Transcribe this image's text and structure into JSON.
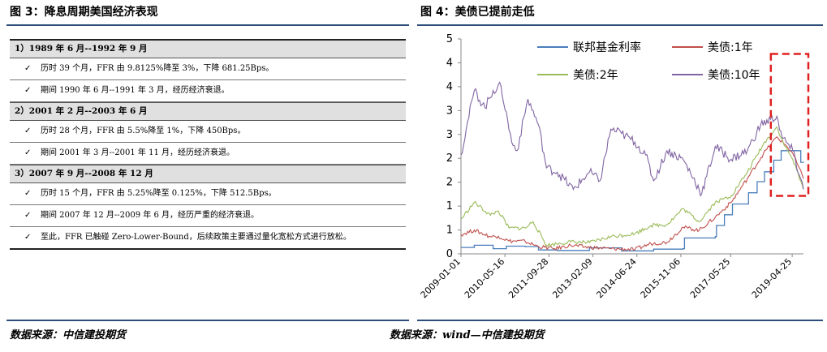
{
  "left_panel": {
    "title": "图 3：降息周期美国经济表现",
    "source": "数据来源：中信建投期货",
    "periods": [
      {
        "heading": "1）1989 年 6 月--1992 年 9 月",
        "items": [
          "历时 39 个月，FFR 由 9.8125%降至 3%，下降 681.25Bps。",
          "期间 1990 年 6 月--1991 年 3 月，经历经济衰退。"
        ]
      },
      {
        "heading": "2）2001 年 2 月--2003 年 6 月",
        "items": [
          "历时 28 个月，FFR 由 5.5%降至 1%，下降 450Bps。",
          "期间 2001 年 3 月--2001 年 11 月，经历经济衰退。"
        ]
      },
      {
        "heading": "3）2007 年 9 月--2008 年 12 月",
        "items": [
          "历时 15 个月，FFR 由 5.25%降至 0.125%，下降 512.5Bps。",
          "期间 2007 年 12 月--2009 年 6 月，经历严重的经济衰退。",
          "至此，FFR 已触碰 Zero-Lower-Bound，后续政策主要通过量化宽松方式进行放松。"
        ]
      }
    ],
    "check_glyph": "✓"
  },
  "right_panel": {
    "title": "图 4：美债已提前走低",
    "source": "数据来源：wind—中信建投期货"
  },
  "colors": {
    "rule": "#2e4e7a",
    "ffr": "#4a7ebb",
    "t1y": "#c0504d",
    "t2y": "#9bbb59",
    "t10y": "#8064a2",
    "highlight_box": "#e02020"
  },
  "chart_data": {
    "type": "line",
    "title": "",
    "xlabel": "",
    "ylabel": "",
    "ylim": [
      0,
      5
    ],
    "y_tick_labels": [
      "0",
      "1",
      "1",
      "2",
      "2",
      "3",
      "3",
      "4",
      "4",
      "5"
    ],
    "x_tick_labels": [
      "2009-01-01",
      "2010-05-16",
      "2011-09-28",
      "2013-02-09",
      "2014-06-24",
      "2015-11-06",
      "2017-05-25",
      "2019-04-25"
    ],
    "x_range": [
      "2009-01-01",
      "2019-08-31"
    ],
    "legend_position": "top-right",
    "highlight": {
      "from": "2018-10-01",
      "to": "2019-08-31",
      "note": "dashed red box around the recent decline"
    },
    "series": [
      {
        "name": "联邦基金利率",
        "color_key": "ffr",
        "points": [
          [
            "2009-01-01",
            0.15
          ],
          [
            "2009-06-01",
            0.2
          ],
          [
            "2010-01-01",
            0.12
          ],
          [
            "2010-06-01",
            0.18
          ],
          [
            "2011-01-01",
            0.17
          ],
          [
            "2011-06-01",
            0.09
          ],
          [
            "2012-01-01",
            0.08
          ],
          [
            "2013-01-01",
            0.14
          ],
          [
            "2014-01-01",
            0.07
          ],
          [
            "2015-01-01",
            0.11
          ],
          [
            "2015-11-30",
            0.12
          ],
          [
            "2015-12-17",
            0.37
          ],
          [
            "2016-12-01",
            0.4
          ],
          [
            "2016-12-15",
            0.66
          ],
          [
            "2017-03-15",
            0.91
          ],
          [
            "2017-06-15",
            1.16
          ],
          [
            "2017-12-14",
            1.42
          ],
          [
            "2018-03-22",
            1.68
          ],
          [
            "2018-06-14",
            1.91
          ],
          [
            "2018-09-27",
            2.18
          ],
          [
            "2018-12-20",
            2.4
          ],
          [
            "2019-07-31",
            2.4
          ],
          [
            "2019-08-01",
            2.13
          ],
          [
            "2019-08-31",
            2.12
          ]
        ]
      },
      {
        "name": "美债:1年",
        "color_key": "t1y",
        "points": [
          [
            "2009-01-01",
            0.45
          ],
          [
            "2009-06-01",
            0.55
          ],
          [
            "2009-12-01",
            0.4
          ],
          [
            "2010-03-01",
            0.41
          ],
          [
            "2010-07-01",
            0.3
          ],
          [
            "2011-01-01",
            0.29
          ],
          [
            "2011-06-01",
            0.17
          ],
          [
            "2011-12-01",
            0.12
          ],
          [
            "2012-06-01",
            0.2
          ],
          [
            "2013-01-01",
            0.15
          ],
          [
            "2013-09-01",
            0.12
          ],
          [
            "2014-06-01",
            0.1
          ],
          [
            "2014-12-01",
            0.24
          ],
          [
            "2015-06-01",
            0.27
          ],
          [
            "2015-12-01",
            0.62
          ],
          [
            "2016-06-01",
            0.55
          ],
          [
            "2016-12-01",
            0.85
          ],
          [
            "2017-06-01",
            1.2
          ],
          [
            "2017-12-01",
            1.75
          ],
          [
            "2018-06-01",
            2.33
          ],
          [
            "2018-11-01",
            2.72
          ],
          [
            "2019-02-01",
            2.55
          ],
          [
            "2019-05-01",
            2.34
          ],
          [
            "2019-08-31",
            1.75
          ]
        ]
      },
      {
        "name": "美债:2年",
        "color_key": "t2y",
        "points": [
          [
            "2009-01-01",
            0.8
          ],
          [
            "2009-06-01",
            1.2
          ],
          [
            "2009-12-01",
            0.9
          ],
          [
            "2010-03-01",
            1.0
          ],
          [
            "2010-07-01",
            0.6
          ],
          [
            "2011-01-01",
            0.6
          ],
          [
            "2011-04-01",
            0.75
          ],
          [
            "2011-09-01",
            0.2
          ],
          [
            "2012-06-01",
            0.28
          ],
          [
            "2013-01-01",
            0.26
          ],
          [
            "2013-09-01",
            0.4
          ],
          [
            "2014-06-01",
            0.47
          ],
          [
            "2014-12-01",
            0.66
          ],
          [
            "2015-06-01",
            0.68
          ],
          [
            "2015-12-01",
            1.05
          ],
          [
            "2016-06-01",
            0.75
          ],
          [
            "2016-12-01",
            1.2
          ],
          [
            "2017-06-01",
            1.35
          ],
          [
            "2017-12-01",
            1.9
          ],
          [
            "2018-06-01",
            2.55
          ],
          [
            "2018-11-01",
            2.95
          ],
          [
            "2019-02-01",
            2.5
          ],
          [
            "2019-05-01",
            2.2
          ],
          [
            "2019-08-31",
            1.5
          ]
        ]
      },
      {
        "name": "美债:10年",
        "color_key": "t10y",
        "points": [
          [
            "2009-01-01",
            2.3
          ],
          [
            "2009-03-01",
            2.9
          ],
          [
            "2009-06-01",
            3.8
          ],
          [
            "2009-10-01",
            3.4
          ],
          [
            "2010-01-01",
            3.8
          ],
          [
            "2010-04-01",
            3.9
          ],
          [
            "2010-08-01",
            2.6
          ],
          [
            "2010-10-01",
            2.4
          ],
          [
            "2011-02-01",
            3.6
          ],
          [
            "2011-06-01",
            3.0
          ],
          [
            "2011-09-01",
            2.0
          ],
          [
            "2012-01-01",
            1.9
          ],
          [
            "2012-07-01",
            1.5
          ],
          [
            "2013-01-01",
            1.9
          ],
          [
            "2013-05-01",
            1.7
          ],
          [
            "2013-09-01",
            2.9
          ],
          [
            "2014-01-01",
            2.8
          ],
          [
            "2014-06-01",
            2.6
          ],
          [
            "2014-10-01",
            2.3
          ],
          [
            "2015-01-01",
            1.7
          ],
          [
            "2015-06-01",
            2.4
          ],
          [
            "2015-12-01",
            2.2
          ],
          [
            "2016-07-01",
            1.4
          ],
          [
            "2016-12-01",
            2.5
          ],
          [
            "2017-06-01",
            2.2
          ],
          [
            "2017-12-01",
            2.4
          ],
          [
            "2018-05-01",
            3.0
          ],
          [
            "2018-11-01",
            3.2
          ],
          [
            "2019-01-01",
            2.7
          ],
          [
            "2019-05-01",
            2.4
          ],
          [
            "2019-08-31",
            1.5
          ]
        ]
      }
    ]
  }
}
